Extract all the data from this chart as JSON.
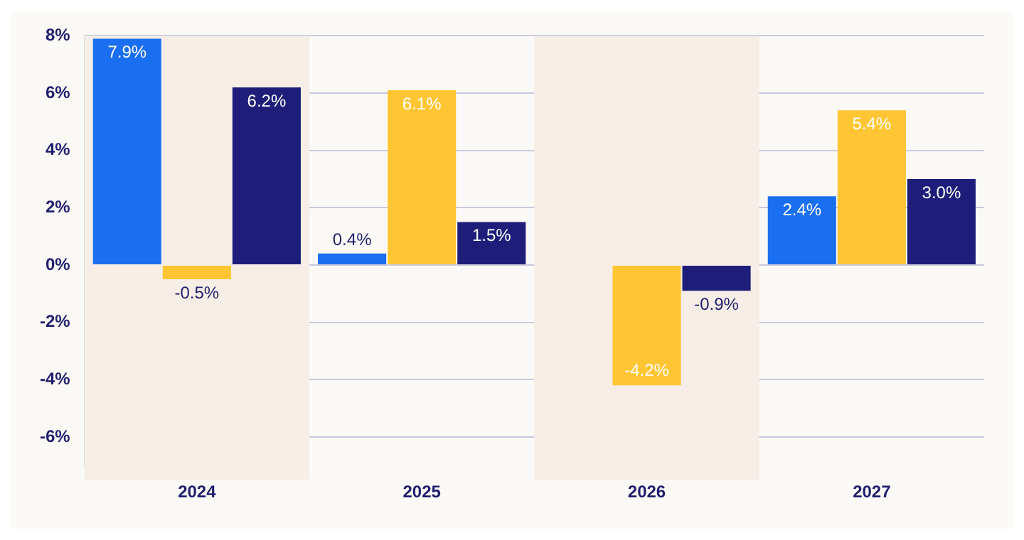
{
  "chart_data": {
    "type": "bar",
    "categories": [
      "2024",
      "2025",
      "2026",
      "2027"
    ],
    "series": [
      {
        "color": "#1a6ff0",
        "values": [
          7.9,
          0.4,
          null,
          2.4
        ],
        "value_labels": [
          "7.9%",
          "0.4%",
          null,
          "2.4%"
        ]
      },
      {
        "color": "#ffc533",
        "values": [
          -0.5,
          6.1,
          -4.2,
          5.4
        ],
        "value_labels": [
          "-0.5%",
          "6.1%",
          "-4.2%",
          "5.4%"
        ]
      },
      {
        "color": "#1e1e7a",
        "values": [
          6.2,
          1.5,
          -0.9,
          3.0
        ],
        "value_labels": [
          "6.2%",
          "1.5%",
          "-0.9%",
          "3.0%"
        ]
      }
    ],
    "ylim": [
      -7,
      8
    ],
    "yticks": [
      {
        "value": -6,
        "label": "-6%"
      },
      {
        "value": -4,
        "label": "-4%"
      },
      {
        "value": -2,
        "label": "-2%"
      },
      {
        "value": 0,
        "label": "0%"
      },
      {
        "value": 2,
        "label": "2%"
      },
      {
        "value": 4,
        "label": "4%"
      },
      {
        "value": 6,
        "label": "6%"
      },
      {
        "value": 8,
        "label": "8%"
      }
    ],
    "grid": "y",
    "bands": [
      {
        "axis": "x",
        "from": "2024",
        "to": "2024",
        "color": "#f6eee6"
      },
      {
        "axis": "x",
        "from": "2026",
        "to": "2026",
        "color": "#f6eee6"
      }
    ]
  }
}
